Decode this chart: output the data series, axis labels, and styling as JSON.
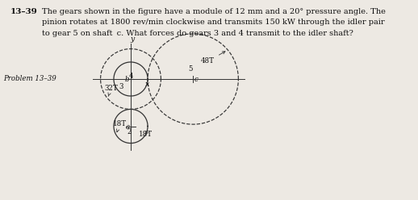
{
  "title_bold": "13–39",
  "title_text": "The gears shown in the figure have a module of 12 mm and a 20° pressure angle. The\npinion rotates at 1800 rev/min clockwise and transmits 150 kW through the idler pair\nto gear 5 on shaft c. What forces do gears 3 and 4 transmit to the idler shaft?",
  "problem_label": "Problem 13–39",
  "bg": "#ede9e3",
  "line_color": "#333333",
  "text_color": "#111111",
  "r2": 54,
  "r3": 96,
  "r4": 54,
  "r5": 144,
  "teeth2": "18T",
  "teeth3": "32T",
  "teeth5": "48T",
  "label2": "2",
  "label3": "3",
  "label4": "4",
  "label5": "5",
  "shaft_a": "a",
  "shaft_b": "b",
  "shaft_c": "c",
  "scale": 0.00165
}
